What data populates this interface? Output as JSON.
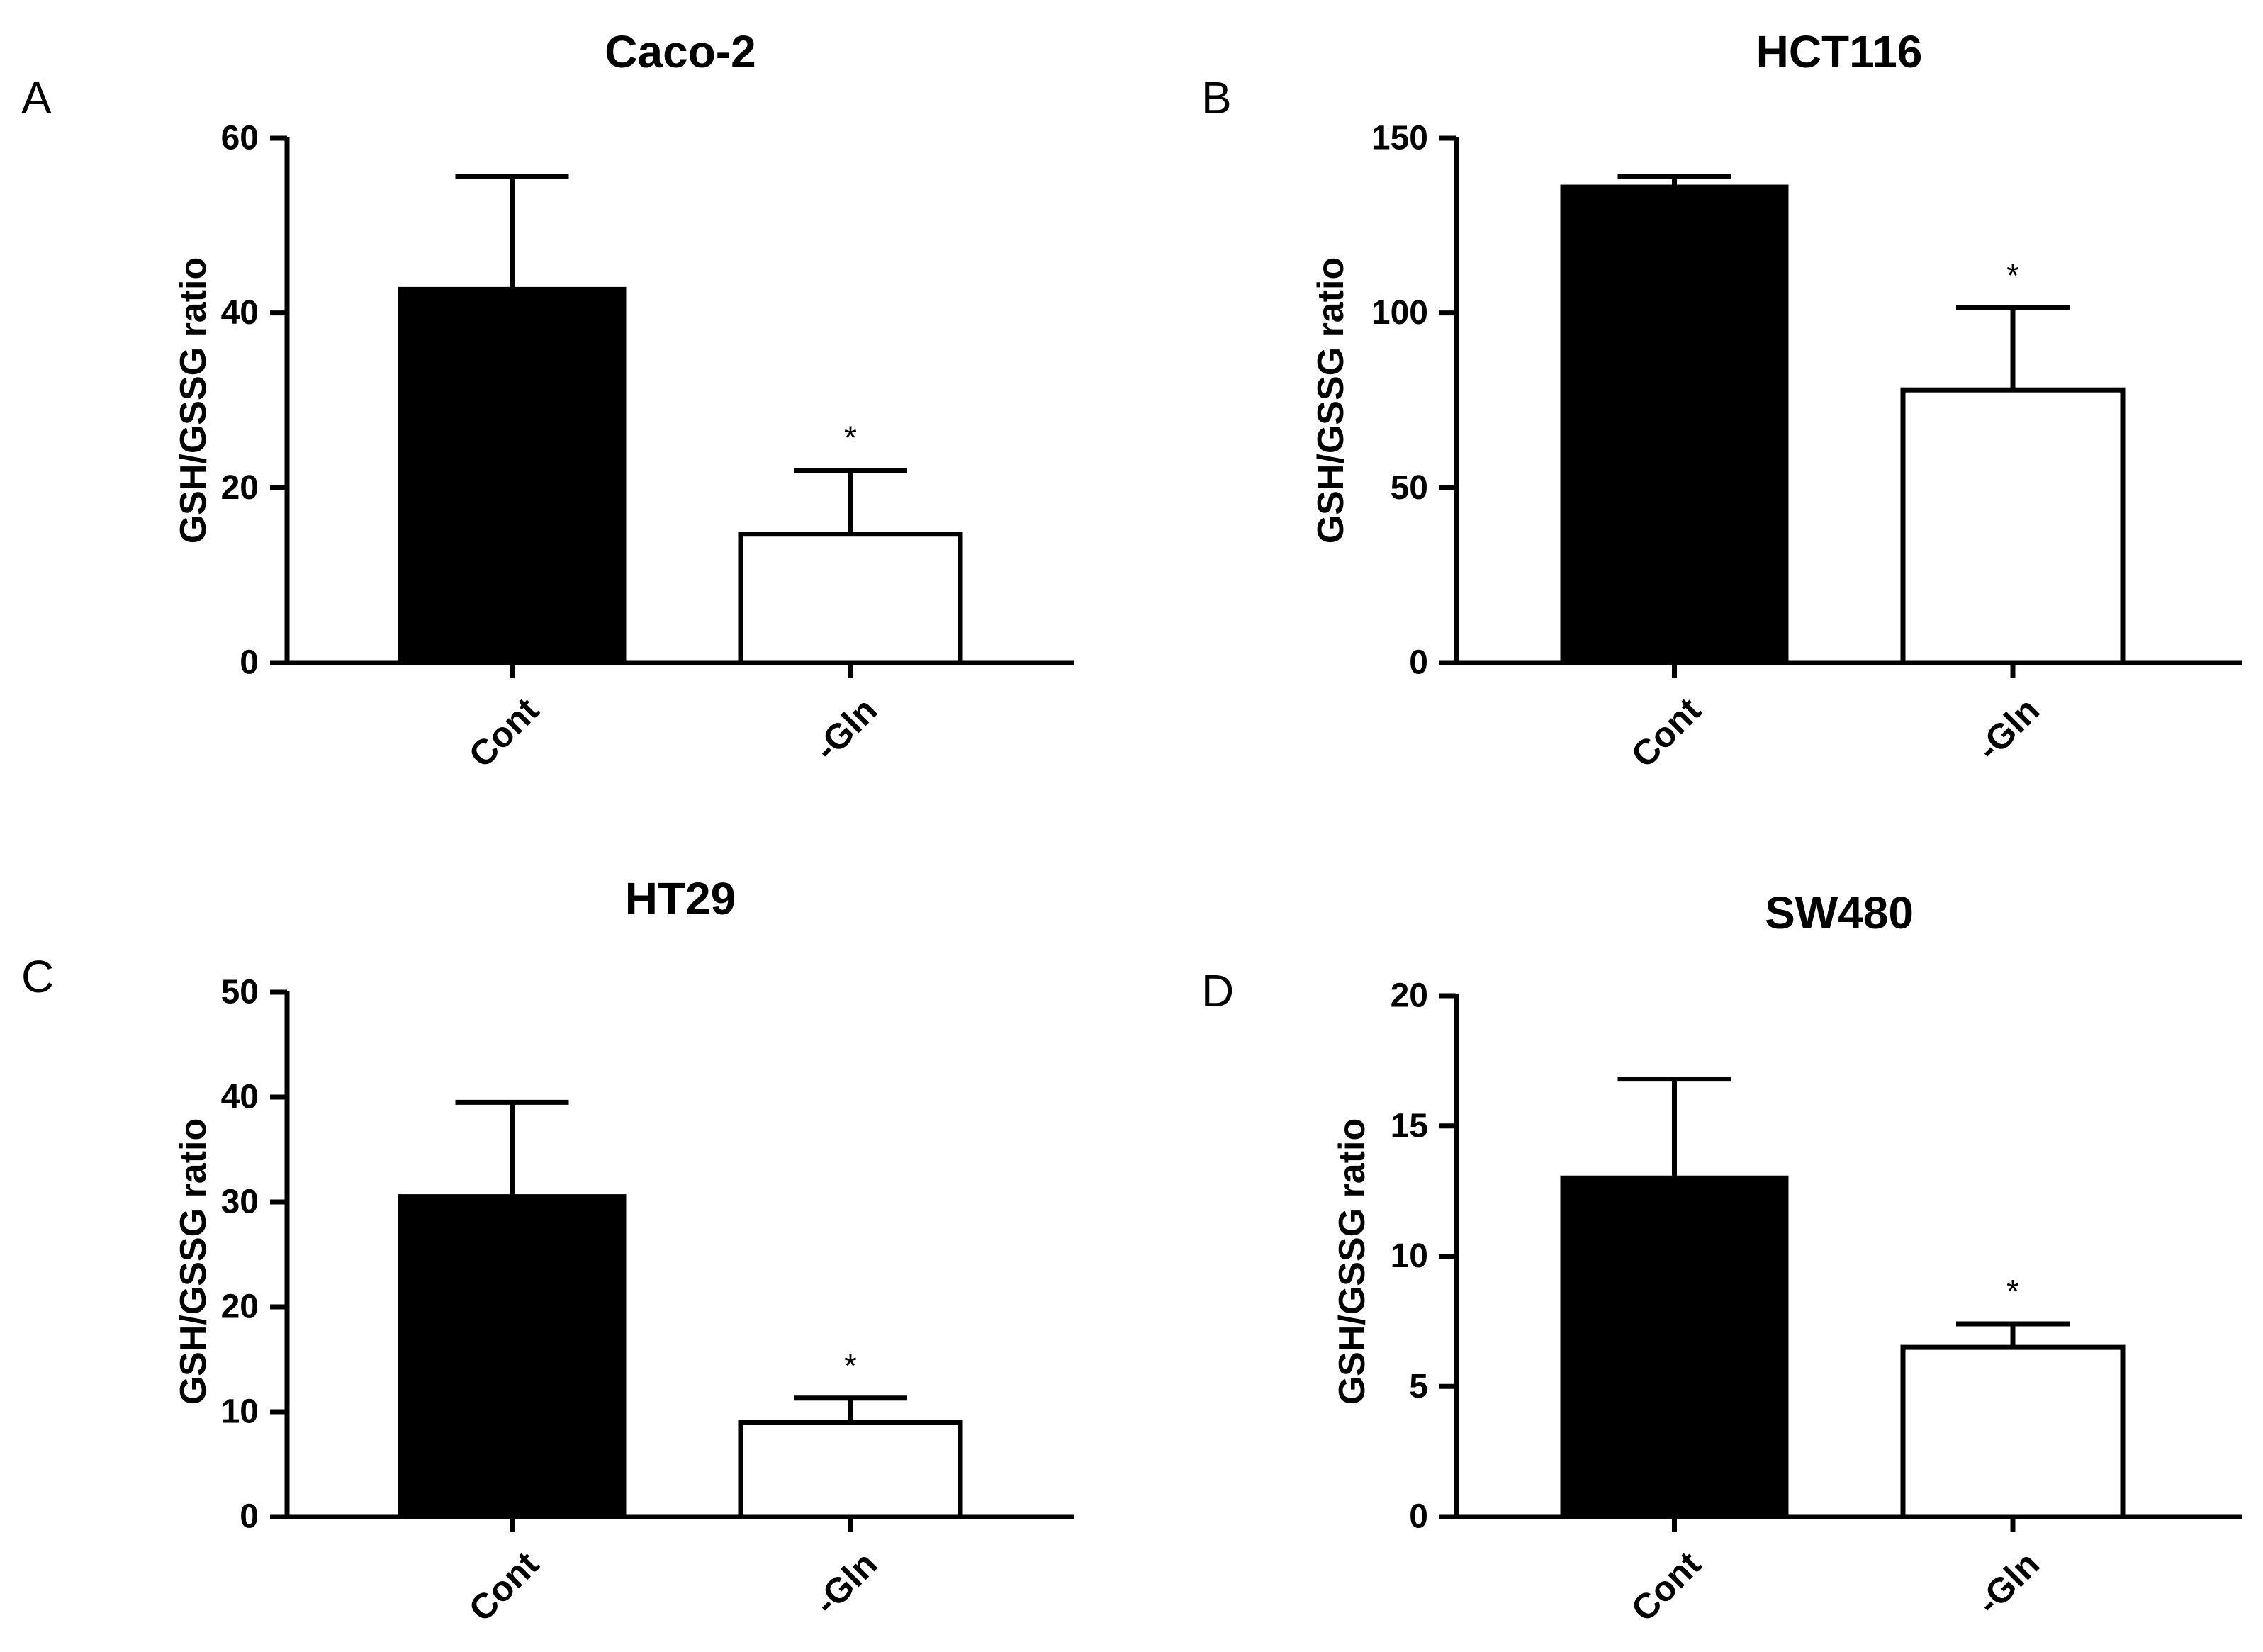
{
  "figure": {
    "y_axis_label": "GSH/GSSG ratio",
    "significance_mark": "*"
  },
  "chart_data": [
    {
      "panel": "A",
      "type": "bar",
      "title": "Caco-2",
      "xlabel": "",
      "ylabel": "GSH/GSSG ratio",
      "categories": [
        "Cont",
        "-Gln"
      ],
      "values": [
        42.7,
        14.7
      ],
      "error": [
        12.9,
        7.3
      ],
      "significance": [
        "",
        "*"
      ],
      "bar_colors": [
        "#000000",
        "#ffffff"
      ],
      "yticks": [
        0,
        20,
        40,
        60
      ],
      "ylim": [
        0,
        60
      ]
    },
    {
      "panel": "B",
      "type": "bar",
      "title": "HCT116",
      "xlabel": "",
      "ylabel": "GSH/GSSG ratio",
      "categories": [
        "Cont",
        "-Gln"
      ],
      "values": [
        136,
        78
      ],
      "error": [
        3,
        23.5
      ],
      "significance": [
        "",
        "*"
      ],
      "bar_colors": [
        "#000000",
        "#ffffff"
      ],
      "yticks": [
        0,
        50,
        100,
        150
      ],
      "ylim": [
        0,
        150
      ]
    },
    {
      "panel": "C",
      "type": "bar",
      "title": "HT29",
      "xlabel": "",
      "ylabel": "GSH/GSSG ratio",
      "categories": [
        "Cont",
        "-Gln"
      ],
      "values": [
        30.5,
        9
      ],
      "error": [
        9,
        2.3
      ],
      "significance": [
        "",
        "*"
      ],
      "bar_colors": [
        "#000000",
        "#ffffff"
      ],
      "yticks": [
        0,
        10,
        20,
        30,
        40,
        50
      ],
      "ylim": [
        0,
        50
      ]
    },
    {
      "panel": "D",
      "type": "bar",
      "title": "SW480",
      "xlabel": "",
      "ylabel": "GSH/GSSG ratio",
      "categories": [
        "Cont",
        "-Gln"
      ],
      "values": [
        13,
        6.5
      ],
      "error": [
        3.8,
        0.9
      ],
      "significance": [
        "",
        "*"
      ],
      "bar_colors": [
        "#000000",
        "#ffffff"
      ],
      "yticks": [
        0,
        5,
        10,
        15,
        20
      ],
      "ylim": [
        0,
        20
      ]
    }
  ]
}
